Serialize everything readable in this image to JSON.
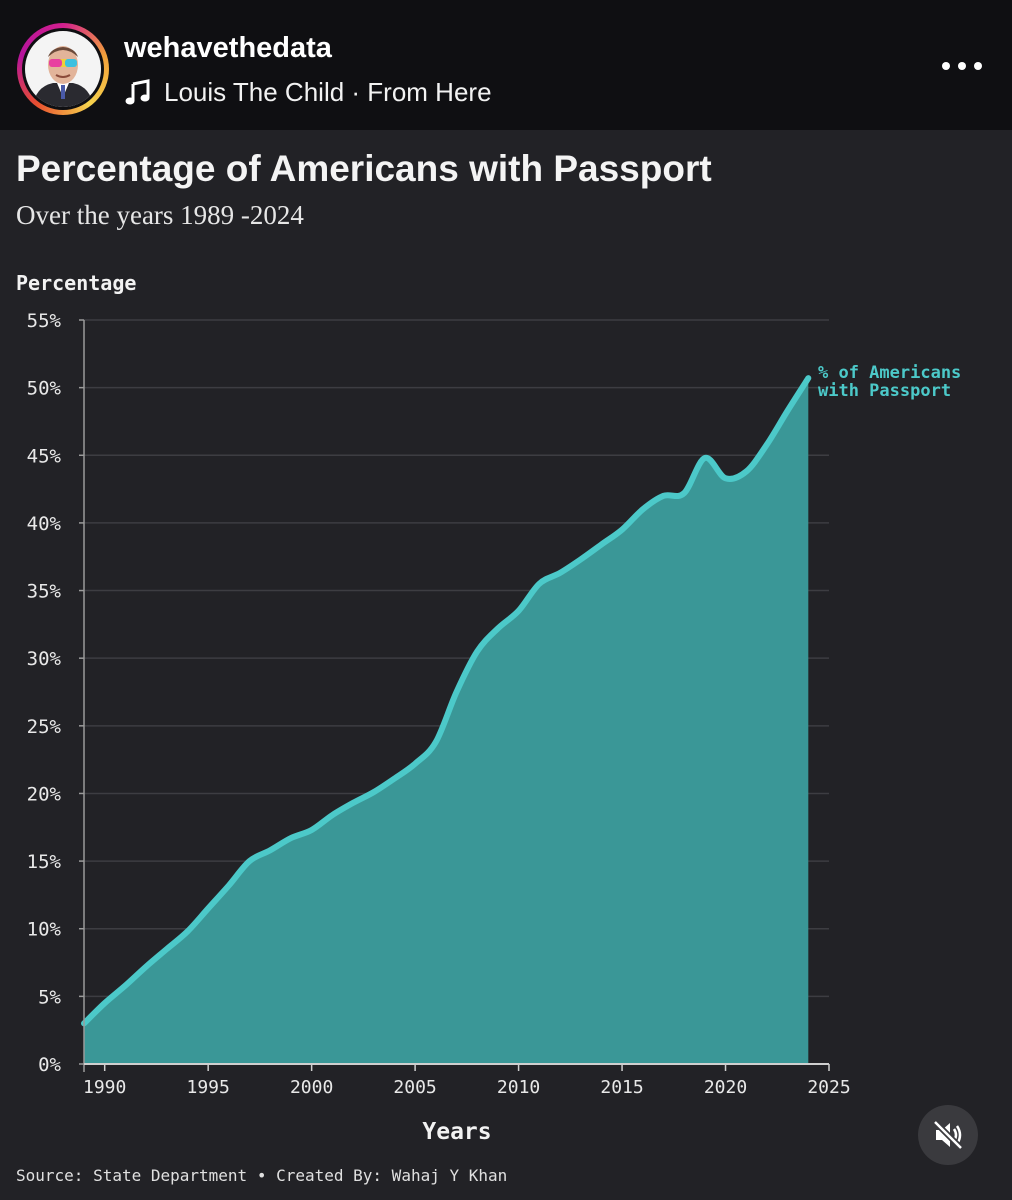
{
  "post": {
    "username": "wehavethedata",
    "music": "Louis The Child · From Here",
    "icons": {
      "music": "music-note-icon",
      "more": "more-options-icon",
      "mute": "muted-speaker-icon"
    }
  },
  "chart_data": {
    "type": "area",
    "title": "Percentage of Americans with Passport",
    "subtitle": "Over the years 1989 -2024",
    "ylabel": "Percentage",
    "xlabel": "Years",
    "series_label": [
      "% of Americans",
      "with Passport"
    ],
    "source": "Source: State Department • Created By: Wahaj Y Khan",
    "color": "#4cc9c9",
    "fill_color": "#3a9797",
    "xlim": [
      1989,
      2025
    ],
    "ylim": [
      0,
      55
    ],
    "xticks": [
      1990,
      1995,
      2000,
      2005,
      2010,
      2015,
      2020,
      2025
    ],
    "yticks": [
      0,
      5,
      10,
      15,
      20,
      25,
      30,
      35,
      40,
      45,
      50,
      55
    ],
    "ytick_labels": [
      "0%",
      "5%",
      "10%",
      "15%",
      "20%",
      "25%",
      "30%",
      "35%",
      "40%",
      "45%",
      "50%",
      "55%"
    ],
    "grid": true,
    "x": [
      1989,
      1990,
      1991,
      1992,
      1993,
      1994,
      1995,
      1996,
      1997,
      1998,
      1999,
      2000,
      2001,
      2002,
      2003,
      2004,
      2005,
      2006,
      2007,
      2008,
      2009,
      2010,
      2011,
      2012,
      2013,
      2014,
      2015,
      2016,
      2017,
      2018,
      2019,
      2020,
      2021,
      2022,
      2023,
      2024
    ],
    "values": [
      3,
      4.5,
      5.8,
      7.2,
      8.5,
      9.8,
      11.5,
      13.2,
      15,
      15.8,
      16.7,
      17.3,
      18.4,
      19.3,
      20.1,
      21.1,
      22.2,
      23.8,
      27.5,
      30.5,
      32.2,
      33.5,
      35.5,
      36.3,
      37.3,
      38.4,
      39.5,
      41.0,
      42.0,
      42.2,
      44.8,
      43.3,
      43.8,
      45.8,
      48.3,
      50.7
    ]
  }
}
